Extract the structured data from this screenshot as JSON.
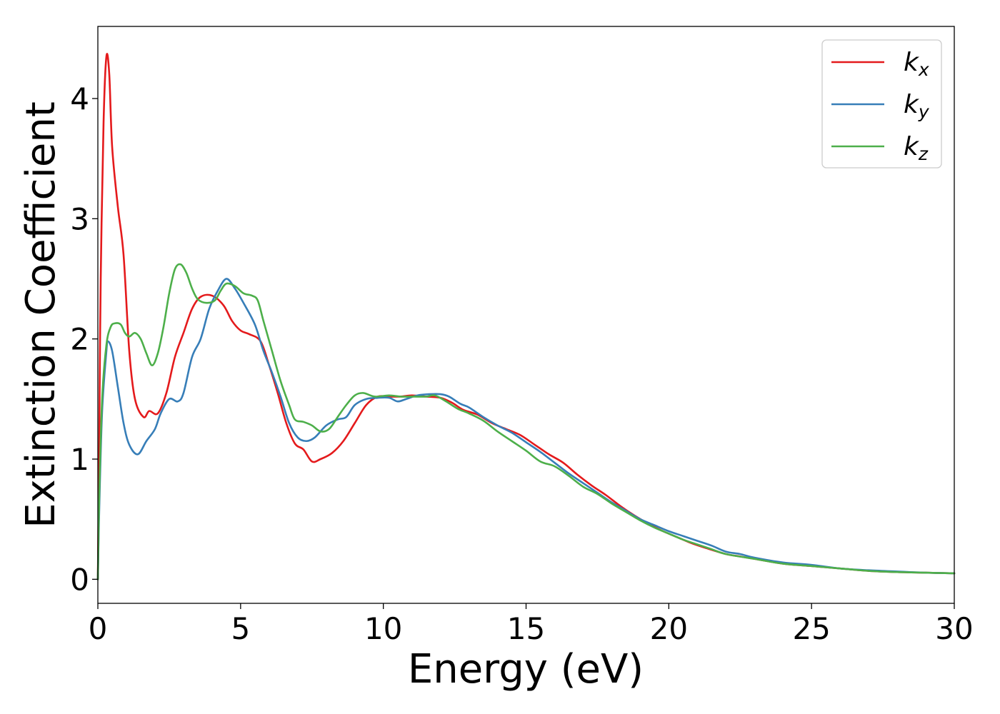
{
  "chart_data": {
    "type": "line",
    "xlabel": "Energy (eV)",
    "ylabel": "Extinction Coefficient",
    "xlim": [
      0,
      30
    ],
    "ylim": [
      -0.2,
      4.6
    ],
    "xticks": [
      0,
      5,
      10,
      15,
      20,
      25,
      30
    ],
    "yticks": [
      0,
      1,
      2,
      3,
      4
    ],
    "grid": false,
    "legend_position": "top-right",
    "series": [
      {
        "name": "k_x",
        "base": "k",
        "subscript": "x",
        "color": "#e41a1c",
        "points": [
          [
            0,
            0
          ],
          [
            0.05,
            1.2
          ],
          [
            0.1,
            2.5
          ],
          [
            0.2,
            3.8
          ],
          [
            0.3,
            4.35
          ],
          [
            0.4,
            4.2
          ],
          [
            0.5,
            3.6
          ],
          [
            0.7,
            3.1
          ],
          [
            0.9,
            2.7
          ],
          [
            1.1,
            1.9
          ],
          [
            1.3,
            1.5
          ],
          [
            1.6,
            1.35
          ],
          [
            1.8,
            1.4
          ],
          [
            2.1,
            1.38
          ],
          [
            2.4,
            1.55
          ],
          [
            2.7,
            1.85
          ],
          [
            3.0,
            2.05
          ],
          [
            3.3,
            2.25
          ],
          [
            3.6,
            2.35
          ],
          [
            4.0,
            2.36
          ],
          [
            4.4,
            2.28
          ],
          [
            4.7,
            2.15
          ],
          [
            5.0,
            2.07
          ],
          [
            5.3,
            2.04
          ],
          [
            5.7,
            1.98
          ],
          [
            6.0,
            1.78
          ],
          [
            6.3,
            1.55
          ],
          [
            6.6,
            1.3
          ],
          [
            6.9,
            1.13
          ],
          [
            7.2,
            1.08
          ],
          [
            7.5,
            0.98
          ],
          [
            7.8,
            1.0
          ],
          [
            8.2,
            1.05
          ],
          [
            8.6,
            1.15
          ],
          [
            9.0,
            1.3
          ],
          [
            9.4,
            1.45
          ],
          [
            9.8,
            1.52
          ],
          [
            10.2,
            1.52
          ],
          [
            10.6,
            1.52
          ],
          [
            11.0,
            1.53
          ],
          [
            11.5,
            1.52
          ],
          [
            12.0,
            1.51
          ],
          [
            12.4,
            1.47
          ],
          [
            12.8,
            1.41
          ],
          [
            13.3,
            1.37
          ],
          [
            13.8,
            1.3
          ],
          [
            14.3,
            1.25
          ],
          [
            14.8,
            1.2
          ],
          [
            15.3,
            1.12
          ],
          [
            15.8,
            1.04
          ],
          [
            16.3,
            0.97
          ],
          [
            16.8,
            0.87
          ],
          [
            17.3,
            0.78
          ],
          [
            17.8,
            0.7
          ],
          [
            18.3,
            0.61
          ],
          [
            18.8,
            0.53
          ],
          [
            19.3,
            0.46
          ],
          [
            19.8,
            0.4
          ],
          [
            20.3,
            0.35
          ],
          [
            20.8,
            0.3
          ],
          [
            21.3,
            0.26
          ],
          [
            22,
            0.21
          ],
          [
            22.5,
            0.19
          ],
          [
            23,
            0.17
          ],
          [
            24,
            0.13
          ],
          [
            25,
            0.11
          ],
          [
            26,
            0.09
          ],
          [
            27,
            0.07
          ],
          [
            28,
            0.06
          ],
          [
            29,
            0.055
          ],
          [
            30,
            0.05
          ]
        ]
      },
      {
        "name": "k_y",
        "base": "k",
        "subscript": "y",
        "color": "#377eb8",
        "points": [
          [
            0,
            0
          ],
          [
            0.05,
            0.6
          ],
          [
            0.15,
            1.4
          ],
          [
            0.3,
            1.9
          ],
          [
            0.35,
            1.98
          ],
          [
            0.5,
            1.9
          ],
          [
            0.7,
            1.6
          ],
          [
            0.9,
            1.3
          ],
          [
            1.1,
            1.12
          ],
          [
            1.4,
            1.04
          ],
          [
            1.7,
            1.15
          ],
          [
            2.0,
            1.25
          ],
          [
            2.2,
            1.38
          ],
          [
            2.5,
            1.5
          ],
          [
            2.8,
            1.48
          ],
          [
            3.0,
            1.55
          ],
          [
            3.3,
            1.85
          ],
          [
            3.6,
            2.0
          ],
          [
            3.9,
            2.25
          ],
          [
            4.2,
            2.4
          ],
          [
            4.5,
            2.5
          ],
          [
            4.8,
            2.42
          ],
          [
            5.1,
            2.3
          ],
          [
            5.5,
            2.12
          ],
          [
            5.8,
            1.9
          ],
          [
            6.1,
            1.72
          ],
          [
            6.4,
            1.52
          ],
          [
            6.7,
            1.3
          ],
          [
            7.0,
            1.18
          ],
          [
            7.3,
            1.15
          ],
          [
            7.6,
            1.18
          ],
          [
            8.0,
            1.28
          ],
          [
            8.4,
            1.33
          ],
          [
            8.7,
            1.35
          ],
          [
            9.0,
            1.45
          ],
          [
            9.4,
            1.5
          ],
          [
            9.8,
            1.51
          ],
          [
            10.2,
            1.51
          ],
          [
            10.5,
            1.48
          ],
          [
            10.8,
            1.5
          ],
          [
            11.2,
            1.53
          ],
          [
            11.6,
            1.54
          ],
          [
            12.0,
            1.54
          ],
          [
            12.3,
            1.52
          ],
          [
            12.7,
            1.46
          ],
          [
            13.0,
            1.43
          ],
          [
            13.5,
            1.35
          ],
          [
            14,
            1.28
          ],
          [
            14.5,
            1.22
          ],
          [
            15,
            1.14
          ],
          [
            15.5,
            1.06
          ],
          [
            16,
            0.97
          ],
          [
            16.5,
            0.88
          ],
          [
            17,
            0.8
          ],
          [
            17.5,
            0.72
          ],
          [
            18,
            0.64
          ],
          [
            18.5,
            0.57
          ],
          [
            19,
            0.5
          ],
          [
            19.5,
            0.45
          ],
          [
            20,
            0.4
          ],
          [
            20.5,
            0.36
          ],
          [
            21,
            0.32
          ],
          [
            21.5,
            0.28
          ],
          [
            22,
            0.23
          ],
          [
            22.5,
            0.21
          ],
          [
            23,
            0.18
          ],
          [
            24,
            0.14
          ],
          [
            25,
            0.12
          ],
          [
            26,
            0.09
          ],
          [
            27,
            0.075
          ],
          [
            28,
            0.065
          ],
          [
            29,
            0.055
          ],
          [
            30,
            0.05
          ]
        ]
      },
      {
        "name": "k_z",
        "base": "k",
        "subscript": "z",
        "color": "#4daf4a",
        "points": [
          [
            0,
            0
          ],
          [
            0.05,
            0.7
          ],
          [
            0.15,
            1.5
          ],
          [
            0.3,
            1.95
          ],
          [
            0.45,
            2.1
          ],
          [
            0.6,
            2.13
          ],
          [
            0.8,
            2.12
          ],
          [
            0.95,
            2.05
          ],
          [
            1.1,
            2.02
          ],
          [
            1.3,
            2.05
          ],
          [
            1.5,
            2.0
          ],
          [
            1.7,
            1.88
          ],
          [
            1.9,
            1.78
          ],
          [
            2.1,
            1.88
          ],
          [
            2.3,
            2.1
          ],
          [
            2.5,
            2.38
          ],
          [
            2.7,
            2.58
          ],
          [
            2.9,
            2.62
          ],
          [
            3.1,
            2.55
          ],
          [
            3.3,
            2.42
          ],
          [
            3.5,
            2.33
          ],
          [
            3.8,
            2.3
          ],
          [
            4.1,
            2.32
          ],
          [
            4.3,
            2.4
          ],
          [
            4.5,
            2.46
          ],
          [
            4.8,
            2.44
          ],
          [
            5.1,
            2.38
          ],
          [
            5.4,
            2.36
          ],
          [
            5.6,
            2.32
          ],
          [
            5.8,
            2.15
          ],
          [
            6.1,
            1.9
          ],
          [
            6.4,
            1.65
          ],
          [
            6.7,
            1.45
          ],
          [
            6.9,
            1.33
          ],
          [
            7.2,
            1.31
          ],
          [
            7.5,
            1.28
          ],
          [
            7.8,
            1.23
          ],
          [
            8.1,
            1.25
          ],
          [
            8.4,
            1.35
          ],
          [
            8.7,
            1.45
          ],
          [
            9.0,
            1.53
          ],
          [
            9.3,
            1.55
          ],
          [
            9.7,
            1.52
          ],
          [
            10.2,
            1.53
          ],
          [
            10.6,
            1.52
          ],
          [
            11.0,
            1.52
          ],
          [
            11.5,
            1.52
          ],
          [
            11.8,
            1.53
          ],
          [
            12.2,
            1.48
          ],
          [
            12.6,
            1.42
          ],
          [
            13.0,
            1.38
          ],
          [
            13.5,
            1.32
          ],
          [
            14,
            1.23
          ],
          [
            14.5,
            1.15
          ],
          [
            15,
            1.07
          ],
          [
            15.5,
            0.98
          ],
          [
            16,
            0.94
          ],
          [
            16.5,
            0.86
          ],
          [
            17,
            0.77
          ],
          [
            17.5,
            0.71
          ],
          [
            18,
            0.63
          ],
          [
            18.5,
            0.56
          ],
          [
            19,
            0.49
          ],
          [
            19.5,
            0.43
          ],
          [
            20,
            0.38
          ],
          [
            20.5,
            0.33
          ],
          [
            21,
            0.29
          ],
          [
            21.5,
            0.25
          ],
          [
            22,
            0.21
          ],
          [
            23,
            0.17
          ],
          [
            24,
            0.13
          ],
          [
            25,
            0.11
          ],
          [
            26,
            0.09
          ],
          [
            27,
            0.07
          ],
          [
            28,
            0.06
          ],
          [
            29,
            0.055
          ],
          [
            30,
            0.05
          ]
        ]
      }
    ]
  }
}
